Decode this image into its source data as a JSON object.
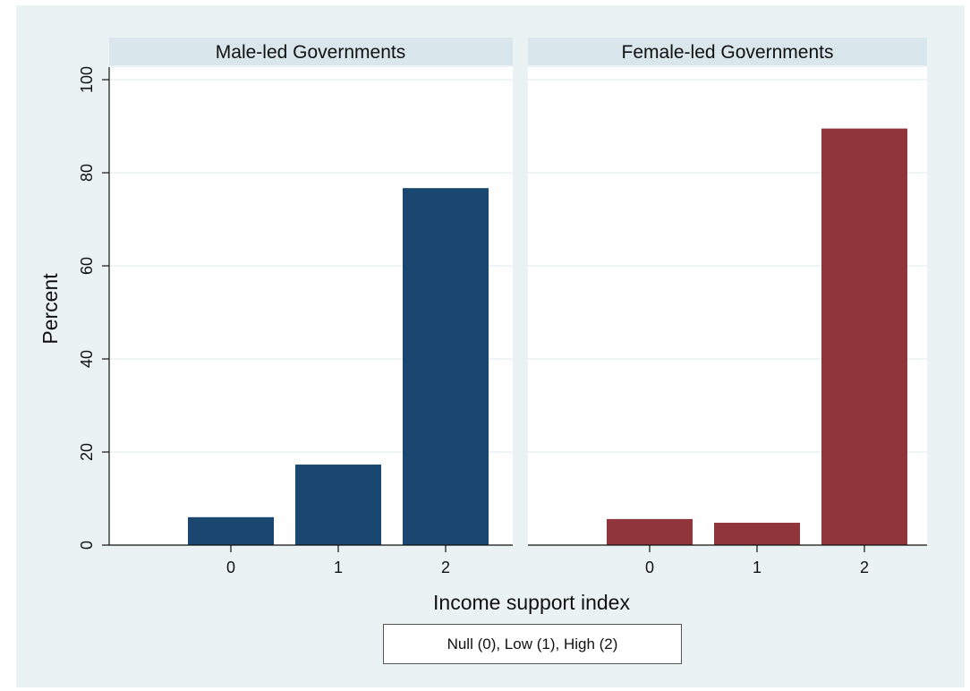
{
  "chart_data": {
    "type": "bar",
    "panels": [
      {
        "title": "Male-led Governments",
        "categories": [
          "0",
          "1",
          "2"
        ],
        "values": [
          6,
          17.3,
          76.7
        ]
      },
      {
        "title": "Female-led Governments",
        "categories": [
          "0",
          "1",
          "2"
        ],
        "values": [
          5.6,
          4.8,
          89.5
        ]
      }
    ],
    "xlabel": "Income support index",
    "ylabel": "Percent",
    "ylim": [
      0,
      100
    ],
    "yticks": [
      "0",
      "20",
      "40",
      "60",
      "80",
      "100"
    ],
    "legend": "Null (0), Low (1), High (2)",
    "grid": true,
    "colors": {
      "male": "#1a476f",
      "female": "#90353b",
      "background": "#eaf2f3",
      "panel_header": "#d9e6eb"
    }
  }
}
